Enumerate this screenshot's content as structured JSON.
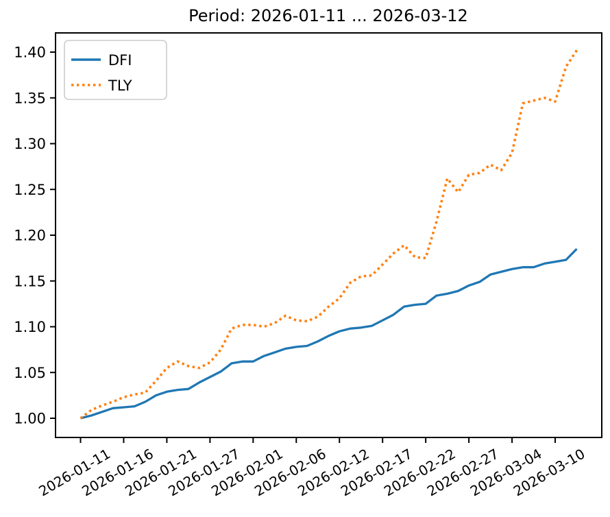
{
  "chart_data": {
    "type": "line",
    "title": "Period: 2026-01-11 ... 2026-03-12",
    "n_points": 47,
    "x_axis": {
      "tick_indices": [
        0,
        4,
        8,
        12,
        16,
        20,
        24,
        28,
        32,
        36,
        40,
        44
      ],
      "tick_labels": [
        "2026-01-11",
        "2026-01-16",
        "2026-01-21",
        "2026-01-27",
        "2026-02-01",
        "2026-02-06",
        "2026-02-12",
        "2026-02-17",
        "2026-02-22",
        "2026-02-27",
        "2026-03-04",
        "2026-03-10"
      ],
      "label_rotation_deg": 30
    },
    "y_axis": {
      "tick_values": [
        1.0,
        1.05,
        1.1,
        1.15,
        1.2,
        1.25,
        1.3,
        1.35,
        1.4
      ],
      "tick_labels": [
        "1.00",
        "1.05",
        "1.10",
        "1.15",
        "1.20",
        "1.25",
        "1.30",
        "1.35",
        "1.40"
      ]
    },
    "ylim": [
      0.979,
      1.422
    ],
    "grid": false,
    "legend": {
      "position": "upper left",
      "entries": [
        "DFI",
        "TLY"
      ]
    },
    "series": [
      {
        "name": "DFI",
        "color": "#1f77b4",
        "line_style": "solid",
        "values": [
          1.0,
          1.003,
          1.007,
          1.011,
          1.012,
          1.013,
          1.018,
          1.025,
          1.029,
          1.031,
          1.032,
          1.039,
          1.045,
          1.051,
          1.06,
          1.062,
          1.062,
          1.068,
          1.072,
          1.076,
          1.078,
          1.079,
          1.084,
          1.09,
          1.095,
          1.098,
          1.099,
          1.101,
          1.107,
          1.113,
          1.122,
          1.124,
          1.125,
          1.134,
          1.136,
          1.139,
          1.145,
          1.149,
          1.157,
          1.16,
          1.163,
          1.165,
          1.165,
          1.169,
          1.171,
          1.173,
          1.185
        ]
      },
      {
        "name": "TLY",
        "color": "#ff7f0e",
        "line_style": "dotted",
        "values": [
          1.0,
          1.009,
          1.014,
          1.018,
          1.023,
          1.026,
          1.028,
          1.041,
          1.055,
          1.062,
          1.057,
          1.055,
          1.061,
          1.075,
          1.098,
          1.102,
          1.102,
          1.1,
          1.104,
          1.112,
          1.107,
          1.106,
          1.111,
          1.122,
          1.131,
          1.148,
          1.155,
          1.156,
          1.168,
          1.18,
          1.189,
          1.176,
          1.175,
          1.215,
          1.262,
          1.247,
          1.266,
          1.268,
          1.277,
          1.271,
          1.29,
          1.344,
          1.347,
          1.35,
          1.346,
          1.384,
          1.402
        ]
      }
    ]
  },
  "colors": {
    "background": "#ffffff",
    "spine": "#000000",
    "legend_border": "#cccccc",
    "text": "#000000"
  }
}
